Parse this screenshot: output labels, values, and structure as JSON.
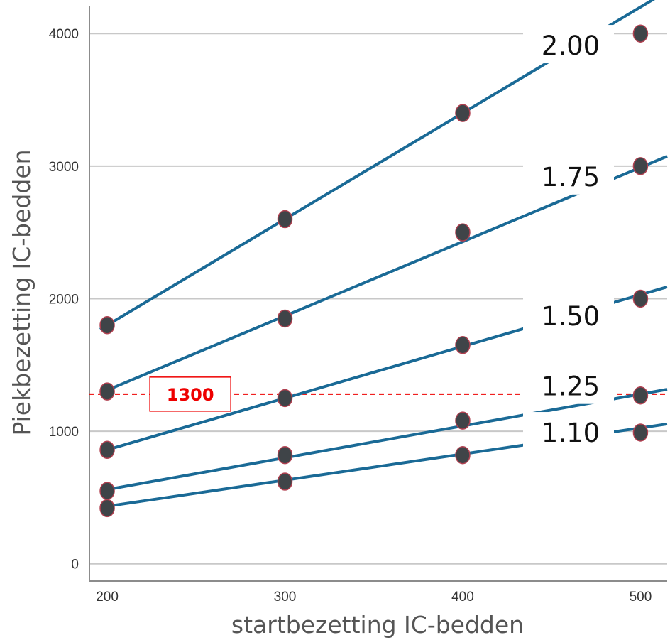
{
  "chart_data": {
    "type": "scatter",
    "title": "",
    "xlabel": "startbezetting IC-bedden",
    "ylabel": "Piekbezetting IC-bedden",
    "xlim": [
      190,
      515
    ],
    "ylim": [
      -130,
      4210
    ],
    "x_ticks": [
      200,
      300,
      400,
      500
    ],
    "y_ticks": [
      0,
      1000,
      2000,
      3000,
      4000
    ],
    "grid": "horizontal",
    "x": [
      200,
      300,
      400,
      500
    ],
    "series": [
      {
        "name": "2.00",
        "values": [
          1800,
          2600,
          3400,
          4000
        ],
        "fit": {
          "intercept": 200,
          "slope": 8.0
        }
      },
      {
        "name": "1.75",
        "values": [
          1300,
          1850,
          2500,
          3000
        ],
        "fit": {
          "intercept": 190,
          "slope": 5.6
        }
      },
      {
        "name": "1.50",
        "values": [
          860,
          1250,
          1650,
          2000
        ],
        "fit": {
          "intercept": 80,
          "slope": 3.9
        }
      },
      {
        "name": "1.25",
        "values": [
          550,
          820,
          1080,
          1270
        ],
        "fit": {
          "intercept": 80,
          "slope": 2.4
        }
      },
      {
        "name": "1.10",
        "values": [
          420,
          620,
          820,
          990
        ],
        "fit": {
          "intercept": 40,
          "slope": 1.97
        }
      }
    ],
    "reference_line": {
      "y": 1280,
      "label": "1300",
      "color": "#ee0000"
    },
    "colors": {
      "line": "#1a6a96",
      "marker": "#3f4448",
      "marker_edge": "#b04050",
      "grid": "#c8c8c8",
      "axis": "#8c8c8c"
    }
  }
}
